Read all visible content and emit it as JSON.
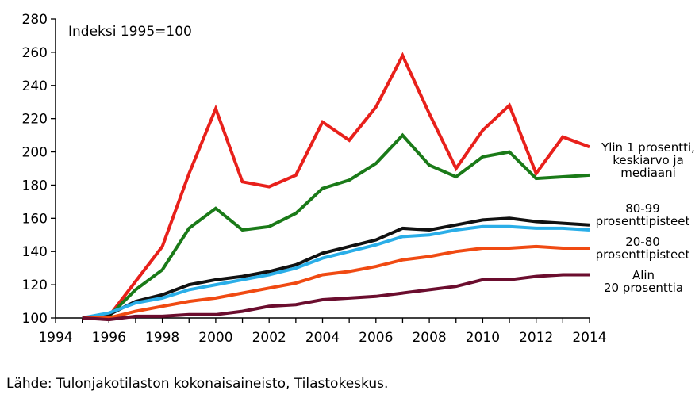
{
  "chart_data": {
    "type": "line",
    "note": "Indeksi 1995=100",
    "title": "",
    "xlabel": "",
    "ylabel": "",
    "xlim": [
      1994,
      2014
    ],
    "ylim": [
      100,
      280
    ],
    "x_ticks": [
      1994,
      1996,
      1998,
      2000,
      2002,
      2004,
      2006,
      2008,
      2010,
      2012,
      2014
    ],
    "y_ticks": [
      100,
      120,
      140,
      160,
      180,
      200,
      220,
      240,
      260,
      280
    ],
    "grid": false,
    "x": [
      1995,
      1996,
      1997,
      1998,
      1999,
      2000,
      2001,
      2002,
      2003,
      2004,
      2005,
      2006,
      2007,
      2008,
      2009,
      2010,
      2011,
      2012,
      2013,
      2014
    ],
    "series": [
      {
        "label_lines": [
          "Ylin 1 prosentti,",
          "keskiarvo ja",
          "mediaani"
        ],
        "color": "#e8201b",
        "values": [
          100,
          101,
          122,
          143,
          187,
          226,
          182,
          179,
          186,
          218,
          207,
          227,
          258,
          223,
          190,
          213,
          228,
          187,
          209,
          203
        ]
      },
      {
        "label_lines": [],
        "color": "#1a7a18",
        "values": [
          100,
          101,
          117,
          129,
          154,
          166,
          153,
          155,
          163,
          178,
          183,
          193,
          210,
          192,
          185,
          197,
          200,
          184,
          185,
          186
        ]
      },
      {
        "label_lines": [
          "80-99",
          "prosenttipisteet"
        ],
        "color": "#111111",
        "values": [
          100,
          102,
          110,
          114,
          120,
          123,
          125,
          128,
          132,
          139,
          143,
          147,
          154,
          153,
          156,
          159,
          160,
          158,
          157,
          156
        ]
      },
      {
        "label_lines": [],
        "color": "#2aaee8",
        "values": [
          100,
          103,
          109,
          112,
          117,
          120,
          123,
          126,
          130,
          136,
          140,
          144,
          149,
          150,
          153,
          155,
          155,
          154,
          154,
          153
        ]
      },
      {
        "label_lines": [
          "20-80",
          "prosenttipisteet"
        ],
        "color": "#f04a12",
        "values": [
          100,
          100,
          104,
          107,
          110,
          112,
          115,
          118,
          121,
          126,
          128,
          131,
          135,
          137,
          140,
          142,
          142,
          143,
          142,
          142
        ]
      },
      {
        "label_lines": [
          "Alin",
          "20 prosenttia"
        ],
        "color": "#6b0d2e",
        "values": [
          100,
          99,
          101,
          101,
          102,
          102,
          104,
          107,
          108,
          111,
          112,
          113,
          115,
          117,
          119,
          123,
          123,
          125,
          126,
          126
        ]
      }
    ]
  },
  "source_text": "Lähde: Tulonjakotilaston kokonaisaineisto, Tilastokeskus."
}
